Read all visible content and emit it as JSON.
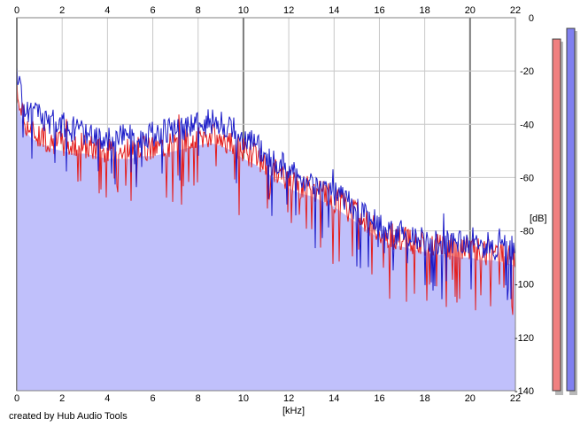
{
  "app": {
    "credit": "created by Hub Audio Tools"
  },
  "chart_data": {
    "type": "area",
    "xlabel": "[kHz]",
    "ylabel": "[dB]",
    "xlim": [
      0,
      22
    ],
    "ylim": [
      -140,
      0
    ],
    "x_ticks": [
      "0",
      "2",
      "4",
      "6",
      "8",
      "10",
      "12",
      "14",
      "16",
      "18",
      "20",
      "22"
    ],
    "y_ticks": [
      "0",
      "-20",
      "-40",
      "-60",
      "-80",
      "-100",
      "-120",
      "-140"
    ],
    "grid": true,
    "colors": {
      "red": "#e31e1e",
      "blue": "#1b1bc8",
      "fill": "#c0c0fb",
      "grid": "#c8c8c8",
      "major_grid": "#7a7a7a"
    },
    "series": [
      {
        "channel": "left",
        "color": "#e31e1e",
        "x": [
          0,
          0.3,
          0.6,
          1,
          1.5,
          2,
          2.5,
          3,
          3.5,
          4,
          4.5,
          5,
          5.5,
          6,
          6.5,
          7,
          7.5,
          8,
          8.5,
          9,
          9.5,
          10,
          10.5,
          11,
          11.5,
          12,
          12.5,
          13,
          13.5,
          14,
          14.5,
          15,
          15.5,
          16,
          16.5,
          17,
          17.5,
          18,
          18.5,
          19,
          19.5,
          20,
          20.5,
          21,
          21.5,
          22
        ],
        "values": [
          -28,
          -38,
          -42,
          -44,
          -46,
          -47,
          -48,
          -48,
          -49,
          -50,
          -50,
          -50,
          -49,
          -49,
          -48,
          -47,
          -46,
          -45,
          -44,
          -45,
          -47,
          -50,
          -52,
          -55,
          -58,
          -61,
          -63,
          -64,
          -66,
          -68,
          -71,
          -74,
          -77,
          -80,
          -82,
          -83,
          -84,
          -85,
          -86,
          -86,
          -87,
          -87,
          -88,
          -88,
          -89,
          -90
        ]
      },
      {
        "channel": "right",
        "color": "#1b1bc8",
        "x": [
          0,
          0.3,
          0.6,
          1,
          1.5,
          2,
          2.5,
          3,
          3.5,
          4,
          4.5,
          5,
          5.5,
          6,
          6.5,
          7,
          7.5,
          8,
          8.5,
          9,
          9.5,
          10,
          10.5,
          11,
          11.5,
          12,
          12.5,
          13,
          13.5,
          14,
          14.5,
          15,
          15.5,
          16,
          16.5,
          17,
          17.5,
          18,
          18.5,
          19,
          19.5,
          20,
          20.5,
          21,
          21.5,
          22
        ],
        "values": [
          -22,
          -32,
          -36,
          -37,
          -39,
          -40,
          -42,
          -43,
          -44,
          -45,
          -45,
          -45,
          -44,
          -44,
          -43,
          -42,
          -41,
          -40,
          -39,
          -40,
          -42,
          -45,
          -48,
          -51,
          -54,
          -57,
          -60,
          -62,
          -64,
          -66,
          -69,
          -72,
          -75,
          -78,
          -80,
          -81,
          -82,
          -83,
          -84,
          -84,
          -85,
          -85,
          -85,
          -86,
          -86,
          -87
        ]
      }
    ],
    "level_meters": [
      {
        "channel": "left",
        "color": "#f08080",
        "level_db": -8
      },
      {
        "channel": "right",
        "color": "#8080f0",
        "level_db": -4
      }
    ]
  }
}
